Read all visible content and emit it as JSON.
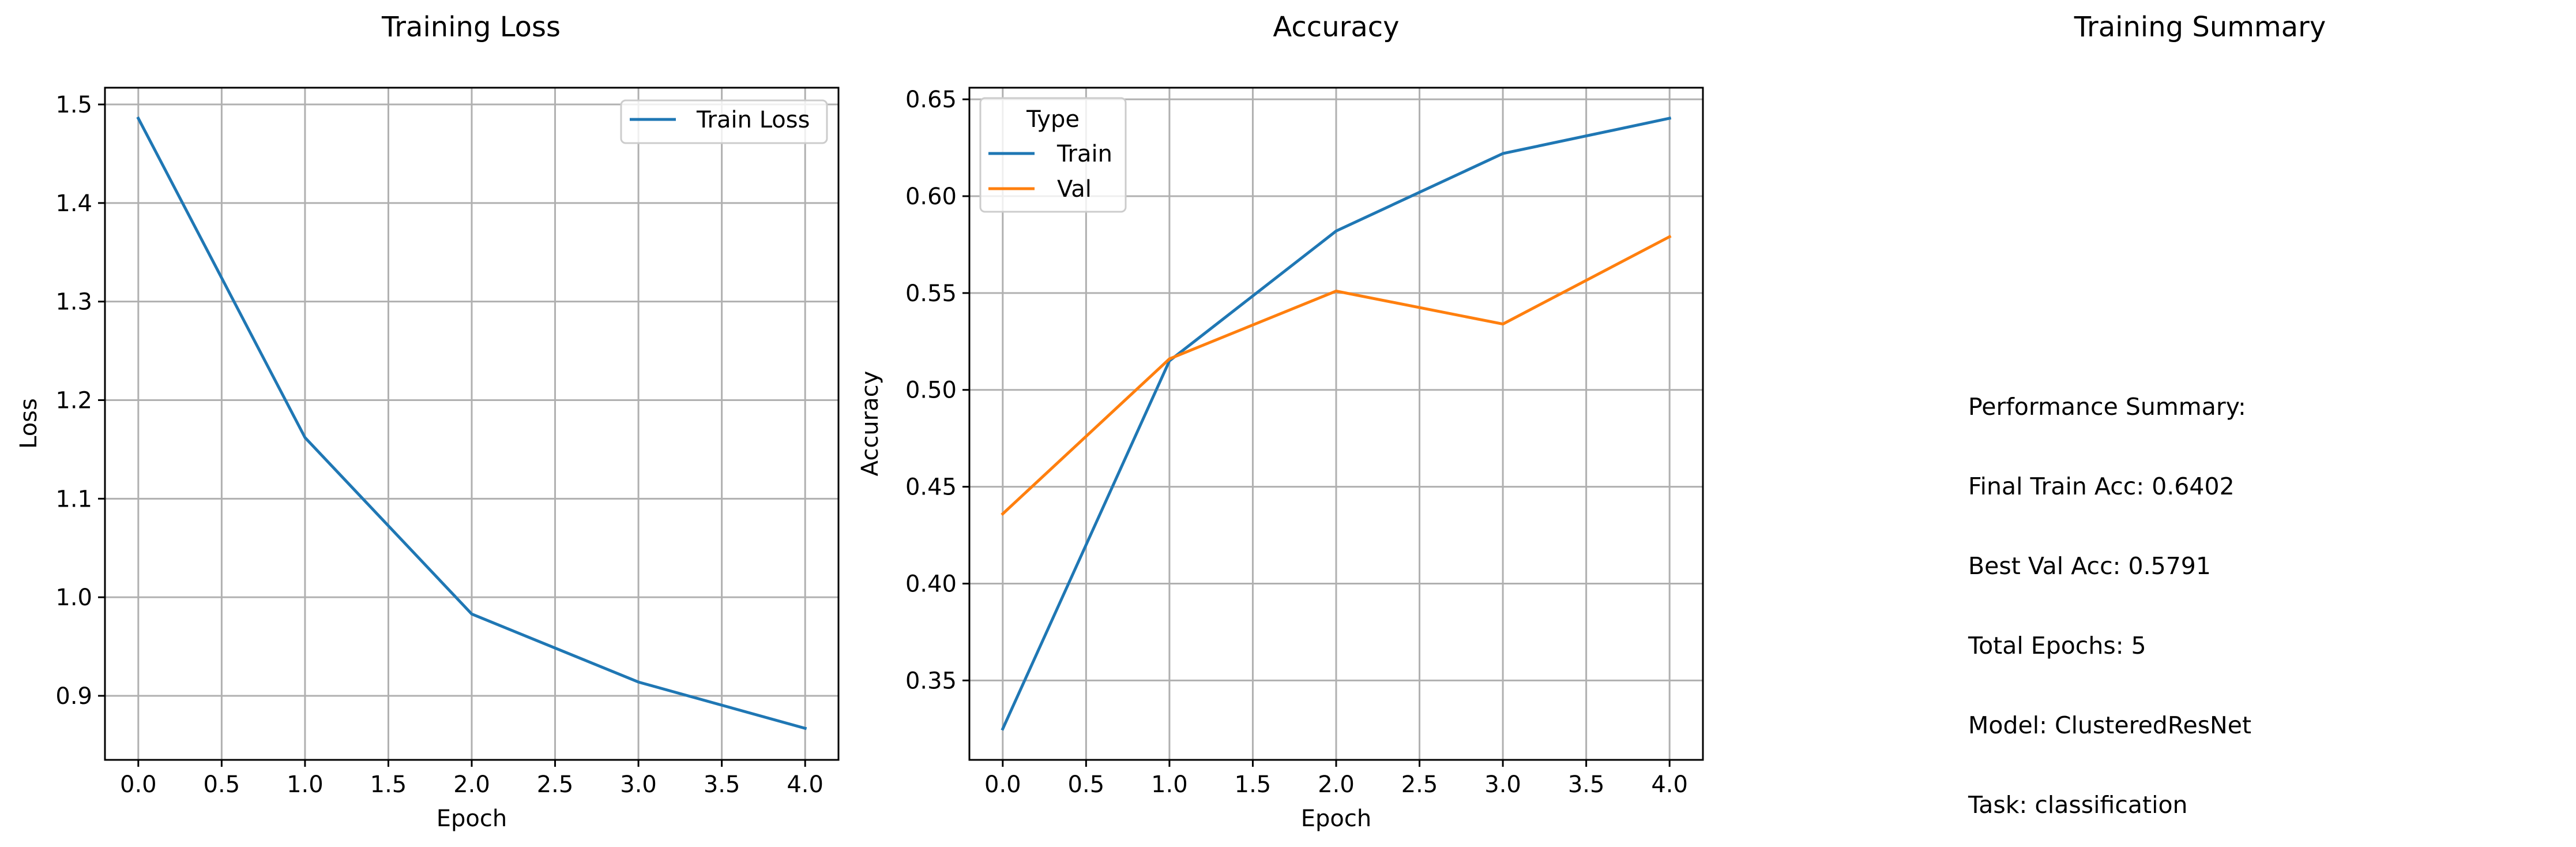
{
  "summary_panel": {
    "title": "Training Summary",
    "lines": [
      "Performance Summary:",
      "Final Train Acc: 0.6402",
      "Best Val Acc: 0.5791",
      "Total Epochs: 5",
      "Model: ClusteredResNet",
      "Task: classification"
    ]
  },
  "chart_data": [
    {
      "type": "line",
      "title": "Training Loss",
      "xlabel": "Epoch",
      "ylabel": "Loss",
      "x": [
        0,
        1,
        2,
        3,
        4
      ],
      "xlim": [
        -0.2,
        4.2
      ],
      "ylim": [
        0.835,
        1.517
      ],
      "xticks": [
        "0.0",
        "0.5",
        "1.0",
        "1.5",
        "2.0",
        "2.5",
        "3.0",
        "3.5",
        "4.0"
      ],
      "yticks": [
        "0.9",
        "1.0",
        "1.1",
        "1.2",
        "1.3",
        "1.4",
        "1.5"
      ],
      "grid": true,
      "legend": {
        "title": "",
        "placement": "top-right"
      },
      "series": [
        {
          "name": "Train Loss",
          "color": "#1f77b4",
          "values": [
            1.486,
            1.162,
            0.983,
            0.914,
            0.867
          ]
        }
      ]
    },
    {
      "type": "line",
      "title": "Accuracy",
      "xlabel": "Epoch",
      "ylabel": "Accuracy",
      "x": [
        0,
        1,
        2,
        3,
        4
      ],
      "xlim": [
        -0.2,
        4.2
      ],
      "ylim": [
        0.309,
        0.656
      ],
      "xticks": [
        "0.0",
        "0.5",
        "1.0",
        "1.5",
        "2.0",
        "2.5",
        "3.0",
        "3.5",
        "4.0"
      ],
      "yticks": [
        "0.35",
        "0.40",
        "0.45",
        "0.50",
        "0.55",
        "0.60",
        "0.65"
      ],
      "grid": true,
      "legend": {
        "title": "Type",
        "placement": "top-left"
      },
      "series": [
        {
          "name": "Train",
          "color": "#1f77b4",
          "values": [
            0.325,
            0.515,
            0.582,
            0.622,
            0.6402
          ]
        },
        {
          "name": "Val",
          "color": "#ff7f0e",
          "values": [
            0.436,
            0.516,
            0.551,
            0.534,
            0.5791
          ]
        }
      ]
    }
  ]
}
